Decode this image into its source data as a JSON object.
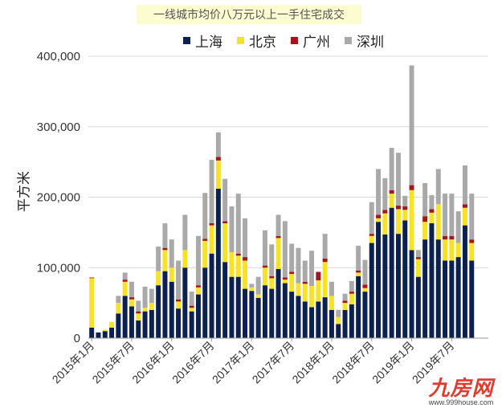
{
  "chart_data": {
    "type": "bar",
    "stacked": true,
    "title": "一线城市均价八万元以上一手住宅成交",
    "ylabel": "平方米",
    "ylim": [
      0,
      400000
    ],
    "yticks": [
      0,
      100000,
      200000,
      300000,
      400000
    ],
    "ytick_labels": [
      "0",
      "100,000",
      "200,000",
      "300,000",
      "400,000"
    ],
    "grid": true,
    "legend_position": "top",
    "x": [
      "2015-01",
      "2015-02",
      "2015-03",
      "2015-04",
      "2015-05",
      "2015-06",
      "2015-07",
      "2015-08",
      "2015-09",
      "2015-10",
      "2015-11",
      "2015-12",
      "2016-01",
      "2016-02",
      "2016-03",
      "2016-04",
      "2016-05",
      "2016-06",
      "2016-07",
      "2016-08",
      "2016-09",
      "2016-10",
      "2016-11",
      "2016-12",
      "2017-01",
      "2017-02",
      "2017-03",
      "2017-04",
      "2017-05",
      "2017-06",
      "2017-07",
      "2017-08",
      "2017-09",
      "2017-10",
      "2017-11",
      "2017-12",
      "2018-01",
      "2018-02",
      "2018-03",
      "2018-04",
      "2018-05",
      "2018-06",
      "2018-07",
      "2018-08",
      "2018-09",
      "2018-10",
      "2018-11",
      "2018-12",
      "2019-01",
      "2019-02",
      "2019-03",
      "2019-04",
      "2019-05",
      "2019-06",
      "2019-07",
      "2019-08",
      "2019-09",
      "2019-10",
      "2019-11",
      "2019-12"
    ],
    "xtick_labels": [
      {
        "index": 0,
        "label": "2015年1月"
      },
      {
        "index": 6,
        "label": "2015年7月"
      },
      {
        "index": 12,
        "label": "2016年1月"
      },
      {
        "index": 18,
        "label": "2016年7月"
      },
      {
        "index": 24,
        "label": "2017年1月"
      },
      {
        "index": 30,
        "label": "2017年7月"
      },
      {
        "index": 36,
        "label": "2018年1月"
      },
      {
        "index": 42,
        "label": "2018年7月"
      },
      {
        "index": 48,
        "label": "2019年1月"
      },
      {
        "index": 54,
        "label": "2019年7月"
      }
    ],
    "series": [
      {
        "name": "上海",
        "color": "#0d2150",
        "values": [
          15000,
          8000,
          10000,
          15000,
          35000,
          60000,
          45000,
          25000,
          38000,
          40000,
          75000,
          95000,
          80000,
          42000,
          100000,
          38000,
          62000,
          100000,
          120000,
          212000,
          108000,
          87000,
          87000,
          70000,
          67000,
          57000,
          75000,
          70000,
          98000,
          78000,
          66000,
          60000,
          52000,
          44000,
          52000,
          58000,
          40000,
          20000,
          40000,
          48000,
          88000,
          66000,
          135000,
          165000,
          147000,
          185000,
          148000,
          167000,
          125000,
          87000,
          140000,
          163000,
          140000,
          110000,
          110000,
          115000,
          160000,
          110000,
          0,
          0
        ]
      },
      {
        "name": "北京",
        "color": "#f7e22a",
        "values": [
          70000,
          0,
          2000,
          8000,
          15000,
          20000,
          10000,
          10000,
          5000,
          10000,
          20000,
          30000,
          20000,
          10000,
          25000,
          5000,
          10000,
          38000,
          40000,
          40000,
          55000,
          35000,
          30000,
          40000,
          5000,
          5000,
          25000,
          15000,
          44000,
          5000,
          25000,
          18000,
          25000,
          30000,
          30000,
          50000,
          20000,
          10000,
          10000,
          15000,
          5000,
          5000,
          10000,
          5000,
          30000,
          20000,
          35000,
          15000,
          85000,
          25000,
          25000,
          15000,
          50000,
          30000,
          30000,
          20000,
          25000,
          25000,
          0,
          0
        ]
      },
      {
        "name": "广州",
        "color": "#a5151e",
        "values": [
          1000,
          0,
          0,
          0,
          0,
          3000,
          3000,
          3000,
          0,
          0,
          0,
          3000,
          0,
          3000,
          0,
          3000,
          3000,
          3000,
          3000,
          5000,
          3000,
          0,
          3000,
          5000,
          0,
          0,
          3000,
          3000,
          3000,
          3000,
          3000,
          0,
          3000,
          0,
          12000,
          5000,
          0,
          0,
          3000,
          3000,
          3000,
          5000,
          3000,
          5000,
          5000,
          5000,
          5000,
          5000,
          7000,
          3000,
          8000,
          5000,
          0,
          5000,
          5000,
          0,
          5000,
          5000,
          0,
          0
        ]
      },
      {
        "name": "深圳",
        "color": "#a9a9aa",
        "values": [
          0,
          0,
          0,
          0,
          10000,
          10000,
          22000,
          15000,
          30000,
          20000,
          35000,
          35000,
          40000,
          55000,
          50000,
          20000,
          70000,
          65000,
          90000,
          35000,
          60000,
          65000,
          85000,
          55000,
          5000,
          25000,
          50000,
          45000,
          30000,
          80000,
          40000,
          50000,
          30000,
          50000,
          0,
          35000,
          20000,
          10000,
          10000,
          15000,
          35000,
          35000,
          45000,
          65000,
          45000,
          60000,
          75000,
          15000,
          170000,
          10000,
          47000,
          20000,
          50000,
          60000,
          60000,
          45000,
          55000,
          65000,
          0,
          0
        ]
      }
    ]
  },
  "watermark": {
    "logo": "九房网",
    "url": "www.999house.com"
  }
}
